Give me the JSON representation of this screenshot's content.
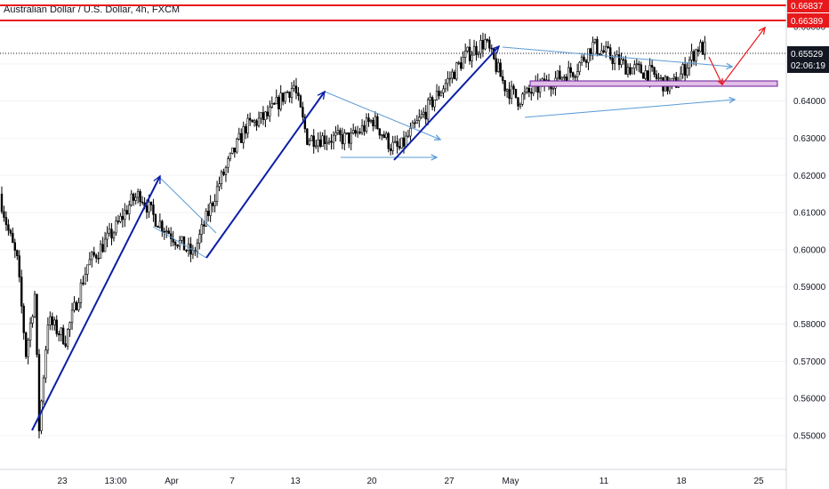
{
  "header": {
    "title": "Australian Dollar / U.S. Dollar, 4h, FXCM"
  },
  "colors": {
    "bull": "#ffffff",
    "bear": "#000000",
    "wick": "#000000",
    "impulse": "#0b1fa8",
    "channel": "#5b9bd5",
    "projection": "#e8191c",
    "level": "#e8191c",
    "zone_fill": "#e1bee7",
    "zone_border": "#6a1b9a",
    "price_tag": "#131722"
  },
  "price_axis": {
    "ticks": [
      "0.66000",
      "0.65000",
      "0.64000",
      "0.63000",
      "0.62000",
      "0.61000",
      "0.60000",
      "0.59000",
      "0.58000",
      "0.57000",
      "0.56000",
      "0.55000"
    ]
  },
  "time_axis": {
    "ticks": [
      "23",
      "13:00",
      "Apr",
      "7",
      "13",
      "20",
      "27",
      "May",
      "11",
      "18",
      "25"
    ]
  },
  "levels": {
    "upper": "0.66837",
    "lower": "0.66389",
    "current": "0.65529",
    "countdown": "02:06:19"
  },
  "chart_data": {
    "type": "candlestick",
    "title": "Australian Dollar / U.S. Dollar, 4h, FXCM",
    "symbol": "AUDUSD",
    "timeframe": "4h",
    "ylim": [
      0.5455,
      0.6705
    ],
    "y_ticks": [
      0.66,
      0.65,
      0.64,
      0.63,
      0.62,
      0.61,
      0.6,
      0.59,
      0.58,
      0.57,
      0.56,
      0.55
    ],
    "x_ticks": [
      "23",
      "13:00",
      "Apr",
      "7",
      "13",
      "20",
      "27",
      "May",
      "11",
      "18",
      "25"
    ],
    "path_knots": [
      [
        0,
        0.615
      ],
      [
        4,
        0.605
      ],
      [
        8,
        0.597
      ],
      [
        12,
        0.572
      ],
      [
        16,
        0.588
      ],
      [
        18,
        0.552
      ],
      [
        22,
        0.581
      ],
      [
        30,
        0.576
      ],
      [
        40,
        0.596
      ],
      [
        52,
        0.605
      ],
      [
        60,
        0.613
      ],
      [
        64,
        0.615
      ],
      [
        70,
        0.609
      ],
      [
        80,
        0.603
      ],
      [
        88,
        0.5985
      ],
      [
        100,
        0.618
      ],
      [
        112,
        0.633
      ],
      [
        122,
        0.636
      ],
      [
        130,
        0.642
      ],
      [
        134,
        0.644
      ],
      [
        140,
        0.63
      ],
      [
        160,
        0.63
      ],
      [
        170,
        0.635
      ],
      [
        178,
        0.628
      ],
      [
        182,
        0.627
      ],
      [
        196,
        0.639
      ],
      [
        212,
        0.652
      ],
      [
        221,
        0.656
      ],
      [
        224,
        0.652
      ],
      [
        230,
        0.644
      ],
      [
        236,
        0.6405
      ],
      [
        248,
        0.6445
      ],
      [
        262,
        0.6485
      ],
      [
        270,
        0.655
      ],
      [
        278,
        0.652
      ],
      [
        286,
        0.649
      ],
      [
        296,
        0.6475
      ],
      [
        304,
        0.644
      ],
      [
        308,
        0.645
      ],
      [
        314,
        0.651
      ],
      [
        318,
        0.6545
      ],
      [
        320,
        0.654
      ]
    ],
    "annotations": {
      "impulse_legs": [
        [
          [
            0.0,
            0.5505
          ],
          [
            0.1,
            0.622
          ]
        ],
        [
          [
            0.2,
            0.598
          ],
          [
            0.3,
            0.645
          ]
        ],
        [
          [
            0.4,
            0.626
          ],
          [
            0.5,
            0.6575
          ]
        ]
      ],
      "channels": [
        [
          [
            0.0,
            0.607
          ],
          [
            0.1,
            0.6
          ]
        ],
        [
          [
            0.0,
            0.6225
          ],
          [
            0.1,
            0.604
          ]
        ],
        [
          [
            0.0,
            0.642
          ],
          [
            0.1,
            0.632
          ]
        ],
        [
          [
            0.0,
            0.6265
          ],
          [
            0.1,
            0.6265
          ]
        ],
        [
          [
            0.0,
            0.6375
          ],
          [
            0.1,
            0.6425
          ]
        ],
        [
          [
            0.0,
            0.6575
          ],
          [
            0.1,
            0.652
          ]
        ]
      ],
      "zone": [
        0.6457,
        0.6472
      ],
      "projection": [
        [
          0.0,
          0.6545
        ],
        [
          0.1,
          0.6465
        ],
        [
          0.2,
          0.663
        ]
      ]
    }
  }
}
